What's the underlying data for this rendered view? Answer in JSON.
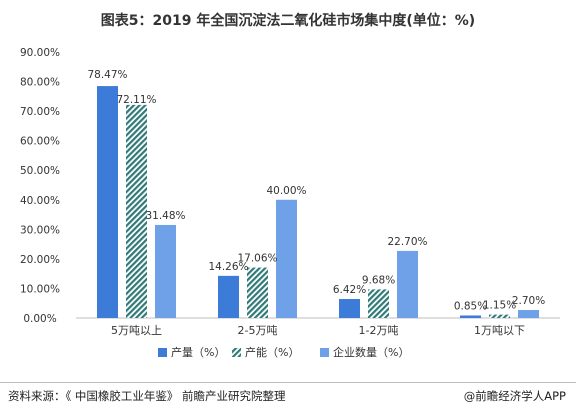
{
  "title": "图表5：2019 年全国沉淀法二氧化硅市场集中度(单位：%)",
  "source": "资料来源：《 中国橡胶工业年鉴》 前瞻产业研究院整理",
  "brand": "@前瞻经济学人APP",
  "colors": {
    "production": "#3d7bd9",
    "capacity": "#2f7a78",
    "enterprises": "#6fa1e8"
  },
  "chart_data": {
    "type": "bar",
    "title": "图表5：2019 年全国沉淀法二氧化硅市场集中度(单位：%)",
    "xlabel": "",
    "ylabel": "",
    "categories": [
      "5万吨以上",
      "2-5万吨",
      "1-2万吨",
      "1万吨以下"
    ],
    "series": [
      {
        "name": "产量（%）",
        "values": [
          78.47,
          14.26,
          6.42,
          0.85
        ],
        "labels": [
          "78.47%",
          "14.26%",
          "6.42%",
          "0.85%"
        ]
      },
      {
        "name": "产能（%）",
        "values": [
          72.11,
          17.06,
          9.68,
          1.15
        ],
        "labels": [
          "72.11%",
          "17.06%",
          "9.68%",
          "1.15%"
        ]
      },
      {
        "name": "企业数量（%）",
        "values": [
          31.48,
          40.0,
          22.7,
          2.7
        ],
        "labels": [
          "31.48%",
          "40.00%",
          "22.70%",
          "2.70%"
        ]
      }
    ],
    "ylim": [
      0,
      90
    ],
    "yticks": [
      "0.00%",
      "10.00%",
      "20.00%",
      "30.00%",
      "40.00%",
      "50.00%",
      "60.00%",
      "70.00%",
      "80.00%",
      "90.00%"
    ],
    "legend": "bottom",
    "grid": false
  }
}
